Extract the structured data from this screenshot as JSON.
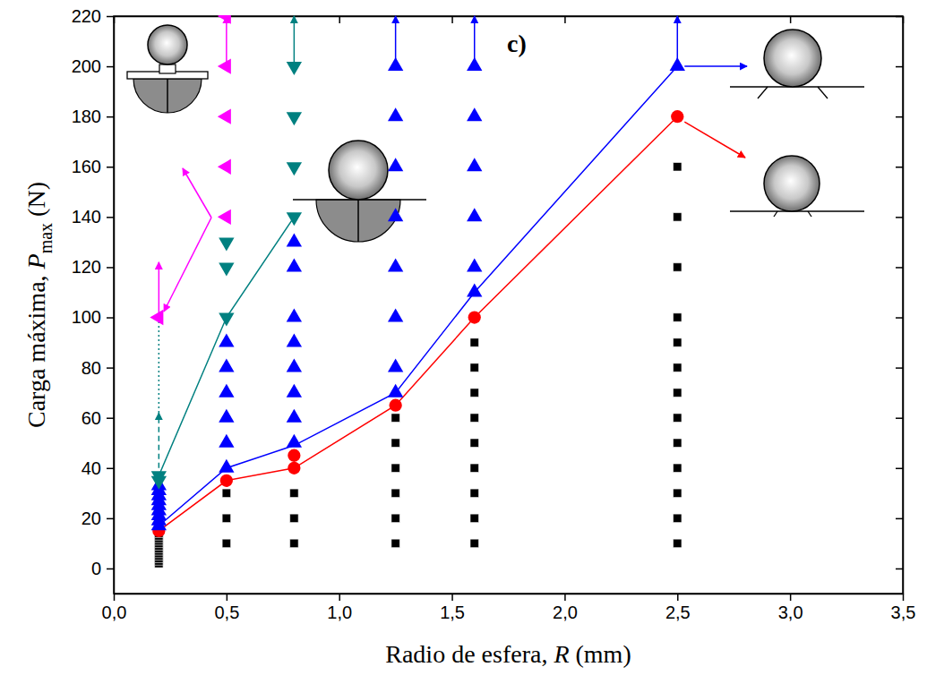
{
  "chart_data": {
    "type": "scatter",
    "x_label": [
      {
        "text": "Radio de esfera, "
      },
      {
        "text": "R",
        "style": "italic"
      },
      {
        "text": " (mm)"
      }
    ],
    "y_label": [
      {
        "text": "Carga máxima, "
      },
      {
        "text": "P",
        "style": "italic"
      },
      {
        "text": "max",
        "style": "sub"
      },
      {
        "text": " (N)"
      }
    ],
    "annotations": [
      {
        "text": "c)"
      }
    ],
    "xlim": [
      0,
      3.5
    ],
    "xticks": [
      {
        "value": 0,
        "label": "0,0"
      },
      {
        "value": 0.5,
        "label": "0,5"
      },
      {
        "value": 1,
        "label": "1,0"
      },
      {
        "value": 1.5,
        "label": "1,5"
      },
      {
        "value": 2,
        "label": "2,0"
      },
      {
        "value": 2.5,
        "label": "2,5"
      },
      {
        "value": 3,
        "label": "3,0"
      },
      {
        "value": 3.5,
        "label": "3,5"
      }
    ],
    "ylim": [
      -10,
      220
    ],
    "yticks": [
      0,
      20,
      40,
      60,
      80,
      100,
      120,
      140,
      160,
      180,
      200,
      220
    ],
    "grid": false,
    "series": [
      {
        "type": "scatter",
        "marker": "square",
        "color": "#000000",
        "x": [
          0.2,
          0.2,
          0.2,
          0.2,
          0.2,
          0.2,
          0.2,
          0.2,
          0.2,
          0.2,
          0.2,
          0.2,
          0.2,
          0.5,
          0.5,
          0.5,
          0.8,
          0.8,
          0.8,
          1.25,
          1.25,
          1.25,
          1.25,
          1.25,
          1.25,
          1.6,
          1.6,
          1.6,
          1.6,
          1.6,
          1.6,
          1.6,
          1.6,
          1.6,
          2.5,
          2.5,
          2.5,
          2.5,
          2.5,
          2.5,
          2.5,
          2.5,
          2.5,
          2.5,
          2.5,
          2.5,
          2.5
        ],
        "values": [
          2,
          3,
          4,
          5,
          6,
          7,
          8,
          9,
          10,
          11,
          12,
          13,
          14,
          10,
          20,
          30,
          10,
          20,
          30,
          10,
          20,
          30,
          40,
          50,
          60,
          10,
          20,
          30,
          40,
          50,
          60,
          70,
          80,
          90,
          10,
          20,
          30,
          40,
          50,
          60,
          70,
          80,
          90,
          100,
          120,
          140,
          160
        ]
      },
      {
        "type": "line",
        "marker": "none",
        "color": "#ff0000",
        "line_style": "solid",
        "x": [
          0.2,
          0.5,
          0.8,
          1.25,
          1.6,
          2.5
        ],
        "values": [
          15,
          35,
          40,
          65,
          100,
          180
        ]
      },
      {
        "type": "line",
        "marker": "none",
        "color": "#0000ff",
        "line_style": "solid",
        "x": [
          0.2,
          0.5,
          0.8,
          1.25,
          1.6,
          2.5
        ],
        "values": [
          17,
          40,
          49,
          70,
          110,
          200
        ]
      },
      {
        "type": "line",
        "marker": "none",
        "color": "#008080",
        "line_style": "solid",
        "x": [
          0.2,
          0.5,
          0.8
        ],
        "values": [
          37,
          100,
          140
        ]
      },
      {
        "type": "scatter",
        "marker": "circle",
        "color": "#ff0000",
        "x": [
          0.2,
          0.5,
          0.8,
          0.8,
          1.25,
          1.6,
          2.5
        ],
        "values": [
          15,
          35,
          40,
          45,
          65,
          100,
          180
        ]
      },
      {
        "type": "scatter",
        "marker": "triangle-up",
        "color": "#0000ff",
        "x": [
          0.2,
          0.2,
          0.2,
          0.2,
          0.2,
          0.2,
          0.2,
          0.2,
          0.2,
          0.5,
          0.5,
          0.5,
          0.5,
          0.5,
          0.5,
          0.8,
          0.8,
          0.8,
          0.8,
          0.8,
          0.8,
          0.8,
          0.8,
          1.25,
          1.25,
          1.25,
          1.25,
          1.25,
          1.25,
          1.25,
          1.25,
          1.6,
          1.6,
          1.6,
          1.6,
          1.6,
          1.6,
          2.5
        ],
        "values": [
          17,
          19,
          21,
          23,
          25,
          27,
          29,
          31,
          33,
          40,
          50,
          60,
          70,
          80,
          90,
          50,
          60,
          70,
          80,
          90,
          100,
          120,
          130,
          70,
          80,
          100,
          120,
          140,
          160,
          180,
          200,
          110,
          120,
          140,
          160,
          180,
          200,
          200
        ]
      },
      {
        "type": "scatter",
        "marker": "triangle-down",
        "color": "#008080",
        "x": [
          0.2,
          0.2,
          0.5,
          0.5,
          0.5,
          0.8,
          0.8,
          0.8,
          0.8
        ],
        "values": [
          35,
          37,
          100,
          120,
          130,
          140,
          160,
          180,
          200
        ]
      },
      {
        "type": "scatter",
        "marker": "triangle-left",
        "color": "#ff00ff",
        "x": [
          0.2,
          0.5,
          0.5,
          0.5,
          0.5,
          0.5
        ],
        "values": [
          100,
          140,
          160,
          180,
          200,
          220
        ]
      }
    ],
    "arrows": [
      {
        "x": 0.2,
        "y": [
          40,
          62
        ],
        "color": "#008080",
        "line_style": "dashed",
        "marker": "arrow"
      },
      {
        "x": 0.2,
        "y": [
          62,
          100
        ],
        "color": "#008080",
        "line_style": "dotted",
        "marker": "none"
      },
      {
        "x": 0.2,
        "y": [
          100,
          122
        ],
        "color": "#ff00ff",
        "line_style": "solid",
        "marker": "arrow"
      },
      {
        "x": 0.5,
        "y": [
          200,
          220
        ],
        "color": "#ff00ff",
        "line_style": "solid",
        "marker": "arrow"
      },
      {
        "x": 0.8,
        "y": [
          200,
          220
        ],
        "color": "#008080",
        "line_style": "solid",
        "marker": "arrow"
      },
      {
        "x": 1.25,
        "y": [
          200,
          220
        ],
        "color": "#0000ff",
        "line_style": "solid",
        "marker": "arrow"
      },
      {
        "x": 1.6,
        "y": [
          200,
          220
        ],
        "color": "#0000ff",
        "line_style": "solid",
        "marker": "arrow"
      },
      {
        "x": 2.5,
        "y": [
          200,
          220
        ],
        "color": "#0000ff",
        "line_style": "solid",
        "marker": "arrow"
      }
    ]
  }
}
